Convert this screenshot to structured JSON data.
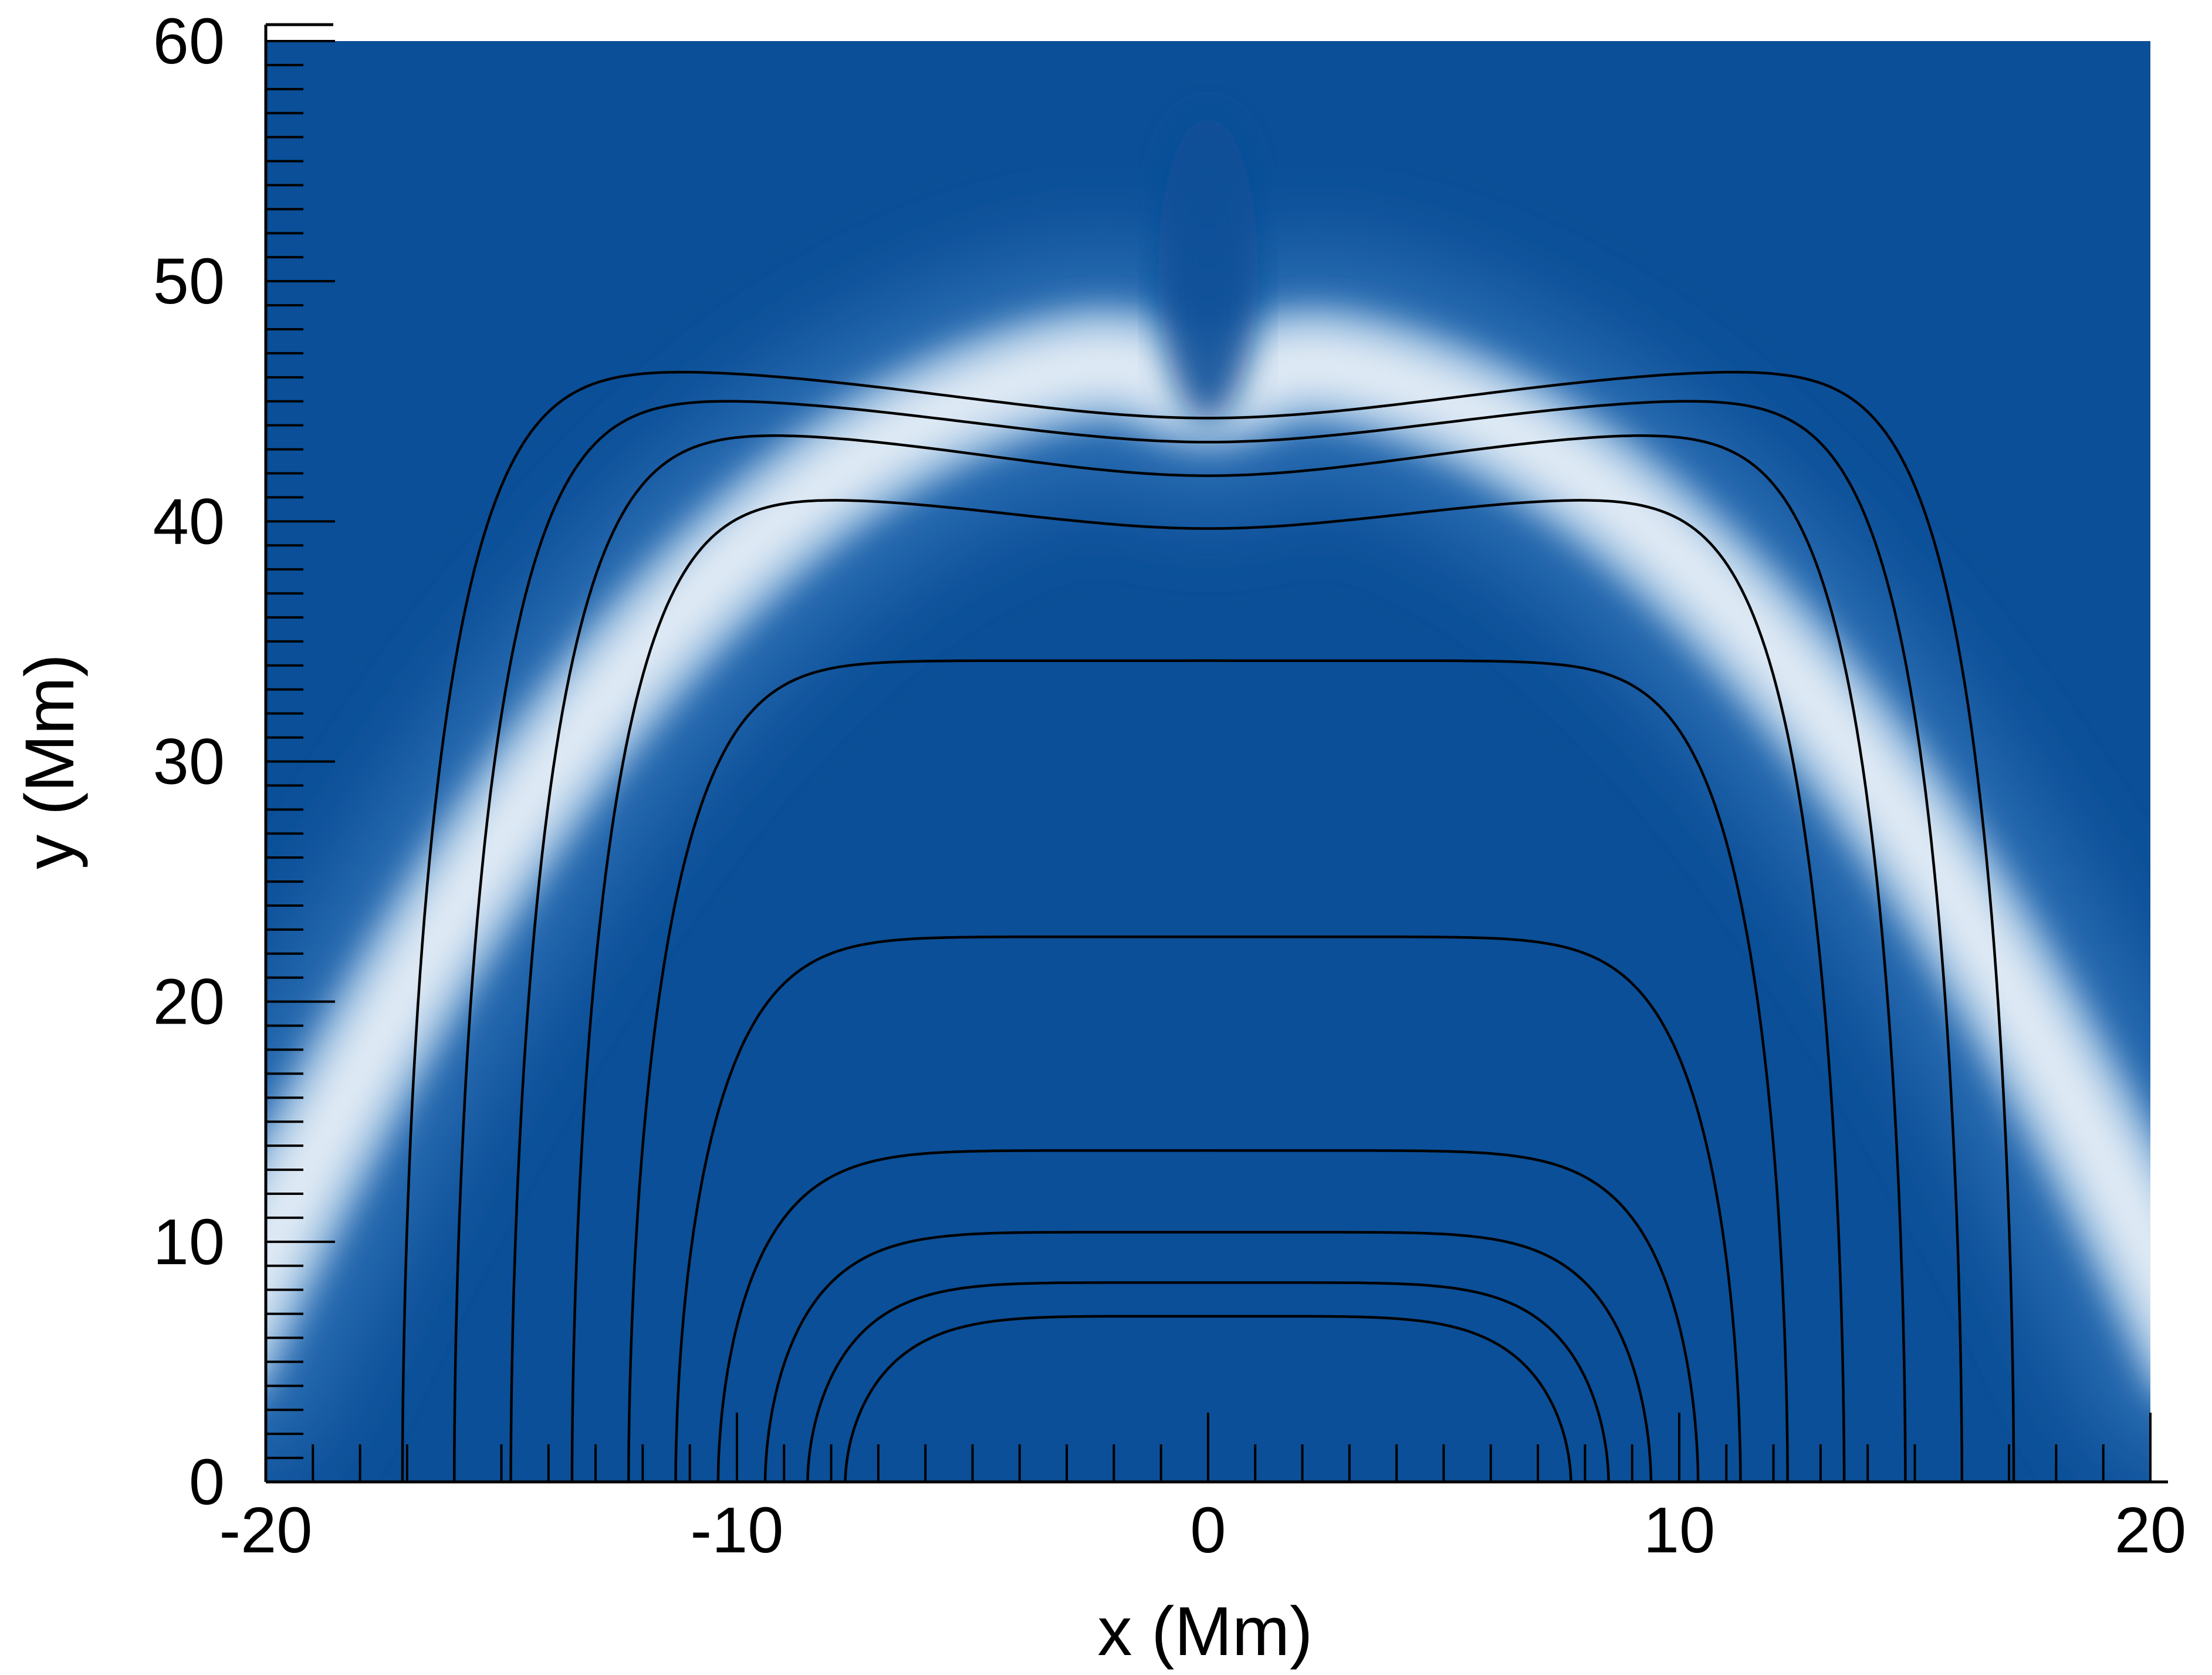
{
  "chart_data": {
    "type": "heatmap",
    "title": "",
    "xlabel": "x (Mm)",
    "ylabel": "y (Mm)",
    "xlim": [
      -20,
      20
    ],
    "ylim": [
      0,
      60
    ],
    "x_ticks": [
      "-20",
      "-10",
      "0",
      "10",
      "20"
    ],
    "y_ticks": [
      "0",
      "10",
      "20",
      "30",
      "40",
      "50",
      "60"
    ],
    "x_tick_values": [
      -20,
      -10,
      0,
      10,
      20
    ],
    "y_tick_values": [
      0,
      10,
      20,
      30,
      40,
      50,
      60
    ],
    "minor_tick_step": 1,
    "colors": {
      "background": "#0b4f98",
      "highlight": "#e3ecf6",
      "contour": "#000000"
    },
    "heatmap_feature": {
      "description_free": true,
      "arc_peak_y": 48,
      "arc_ends_x": [
        -20,
        20
      ],
      "arc_ends_y": 9.5
    },
    "contours": [
      {
        "foot": 7.7,
        "top": 6.9,
        "dip": 0,
        "bulge": 0
      },
      {
        "foot": 8.5,
        "top": 8.3,
        "dip": 0,
        "bulge": 0
      },
      {
        "foot": 9.4,
        "top": 10.4,
        "dip": 0,
        "bulge": 0
      },
      {
        "foot": 10.4,
        "top": 13.8,
        "dip": 0,
        "bulge": 0
      },
      {
        "foot": 11.3,
        "top": 22.7,
        "dip": 0,
        "bulge": 3.2
      },
      {
        "foot": 12.3,
        "top": 34.2,
        "dip": 0,
        "bulge": 6.2
      },
      {
        "foot": 13.5,
        "top": 41.1,
        "dip": 1.4,
        "bulge": 9.3
      },
      {
        "foot": 14.8,
        "top": 43.8,
        "dip": 1.9,
        "bulge": 12.4
      },
      {
        "foot": 16.0,
        "top": 45.2,
        "dip": 1.9,
        "bulge": 14.4
      },
      {
        "foot": 17.1,
        "top": 46.4,
        "dip": 2.1,
        "bulge": 16.1
      }
    ]
  }
}
